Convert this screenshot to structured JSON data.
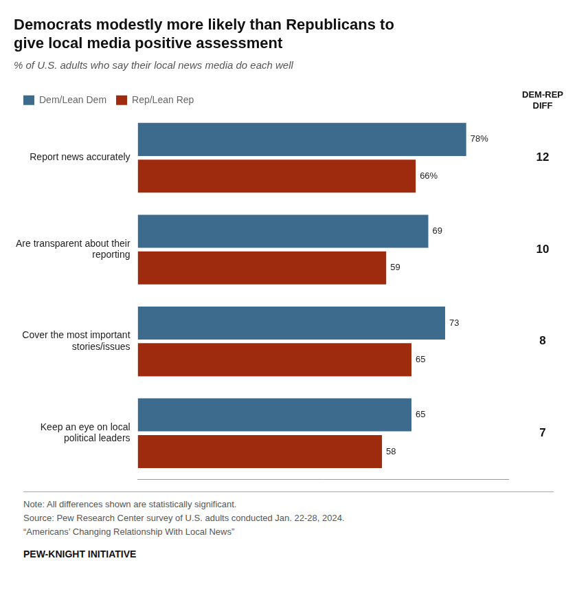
{
  "chart_data": {
    "type": "bar",
    "orientation": "horizontal",
    "title": "Democrats modestly more likely than Republicans to\ngive local media positive assessment",
    "subtitle": "% of U.S. adults who say their local news media do each well",
    "categories": [
      "Report news accurately",
      "Are transparent about their\nreporting",
      "Cover the most important\nstories/issues",
      "Keep an eye on local\npolitical leaders"
    ],
    "series": [
      {
        "name": "Dem/Lean Dem",
        "color": "#3d6b8e",
        "values": [
          78,
          69,
          73,
          65
        ],
        "value_labels": [
          "78%",
          "69",
          "73",
          "65"
        ]
      },
      {
        "name": "Rep/Lean Rep",
        "color": "#9e2b0e",
        "values": [
          66,
          59,
          65,
          58
        ],
        "value_labels": [
          "66%",
          "59",
          "65",
          "58"
        ]
      }
    ],
    "diff_header": "DEM-REP\nDIFF",
    "diff_values": [
      12,
      10,
      8,
      7
    ],
    "xlim": [
      0,
      88
    ],
    "data_labels": true,
    "tick_labels": "y",
    "grid": false,
    "legend": "upper left",
    "note": "Note: All differences shown are statistically significant.\nSource: Pew Research Center survey of U.S. adults conducted Jan. 22-28, 2024.\n“Americans’ Changing Relationship With Local News”",
    "footer": "PEW-KNIGHT INITIATIVE"
  }
}
